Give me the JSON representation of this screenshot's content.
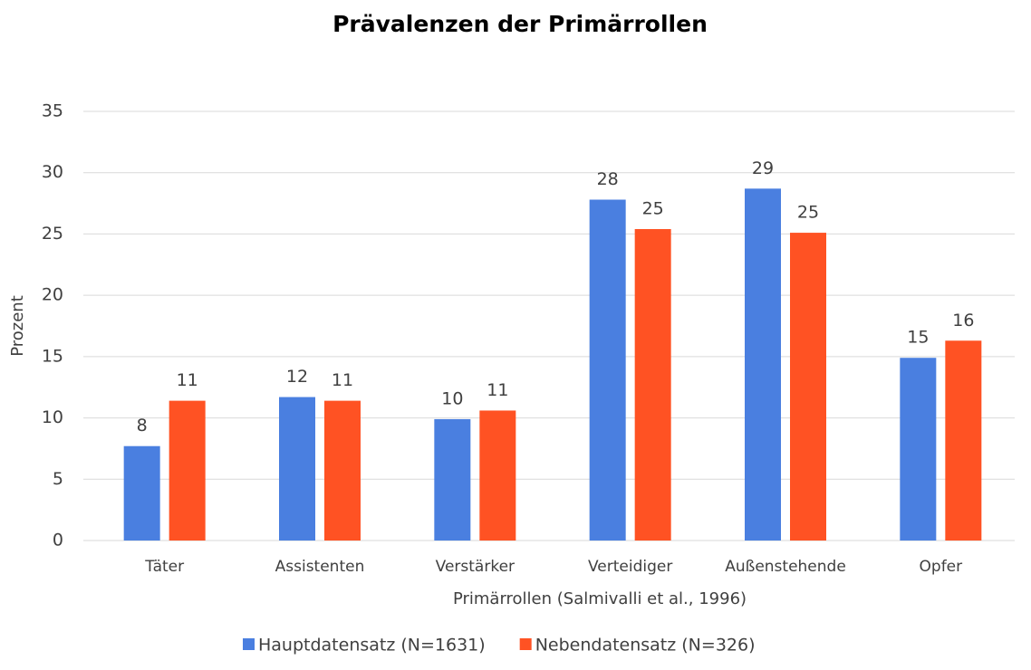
{
  "chart_data": {
    "type": "bar",
    "title": "Prävalenzen der Primärrollen",
    "x_label": "Primärrollen (Salmivalli et al., 1996)",
    "y_label": "Prozent",
    "categories": [
      "Täter",
      "Assistenten",
      "Verstärker",
      "Verteidiger",
      "Außenstehende",
      "Opfer"
    ],
    "series": [
      {
        "name": "Hauptdatensatz (N=1631)",
        "color": "#4a7fe0",
        "values": [
          7.7,
          11.7,
          9.9,
          27.8,
          28.7,
          14.9
        ],
        "value_labels": [
          "8",
          "12",
          "10",
          "28",
          "29",
          "15"
        ]
      },
      {
        "name": "Nebendatensatz (N=326)",
        "color": "#ff5223",
        "values": [
          11.4,
          11.4,
          10.6,
          25.4,
          25.1,
          16.3
        ],
        "value_labels": [
          "11",
          "11",
          "11",
          "25",
          "25",
          "16"
        ]
      }
    ],
    "ylim": [
      0,
      35
    ],
    "yticks": [
      0,
      5,
      10,
      15,
      20,
      25,
      30,
      35
    ],
    "grid": true,
    "legend": "bottom"
  }
}
